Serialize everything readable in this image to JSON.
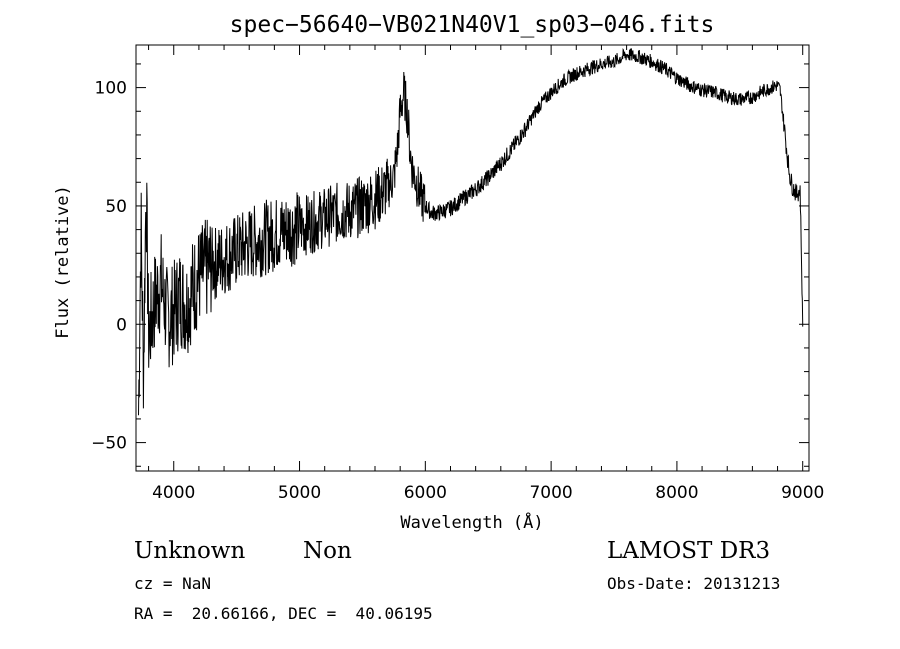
{
  "chart_data": {
    "type": "line",
    "title": "spec−56640−VB021N40V1_sp03−046.fits",
    "xlabel": "Wavelength (Å)",
    "ylabel": "Flux (relative)",
    "xlim": [
      3700,
      9050
    ],
    "ylim": [
      -62,
      118
    ],
    "x_ticks": [
      4000,
      5000,
      6000,
      7000,
      8000,
      9000
    ],
    "x_tick_labels": [
      "4000",
      "5000",
      "6000",
      "7000",
      "8000",
      "9000"
    ],
    "y_ticks": [
      -50,
      0,
      50,
      100
    ],
    "y_tick_labels": [
      "−50",
      "0",
      "50",
      "100"
    ],
    "grid": false,
    "series": [
      {
        "name": "flux",
        "x": [
          3720,
          3740,
          3760,
          3780,
          3800,
          3850,
          3900,
          3950,
          4000,
          4050,
          4100,
          4150,
          4200,
          4300,
          4400,
          4500,
          4600,
          4700,
          4800,
          4900,
          5000,
          5100,
          5200,
          5300,
          5400,
          5500,
          5600,
          5650,
          5700,
          5750,
          5780,
          5800,
          5830,
          5860,
          5880,
          5900,
          5920,
          5950,
          6000,
          6050,
          6100,
          6150,
          6200,
          6300,
          6400,
          6500,
          6600,
          6700,
          6800,
          6900,
          7000,
          7100,
          7200,
          7300,
          7400,
          7500,
          7600,
          7700,
          7800,
          7900,
          8000,
          8100,
          8200,
          8300,
          8400,
          8500,
          8600,
          8700,
          8750,
          8800,
          8820,
          8850,
          8880,
          8900,
          8920,
          8950,
          8980,
          9000
        ],
        "values": [
          -38,
          42,
          -20,
          60,
          -5,
          10,
          18,
          2,
          5,
          12,
          8,
          15,
          20,
          25,
          28,
          31,
          34,
          36,
          38,
          40,
          41,
          43,
          45,
          47,
          48,
          50,
          53,
          55,
          58,
          62,
          75,
          90,
          98,
          88,
          72,
          65,
          62,
          56,
          50,
          47,
          47,
          48,
          49,
          53,
          57,
          62,
          68,
          75,
          83,
          92,
          98,
          103,
          106,
          108,
          110,
          111,
          114,
          113,
          111,
          108,
          104,
          101,
          99,
          98,
          96,
          95,
          96,
          99,
          100,
          101,
          99,
          85,
          70,
          62,
          58,
          55,
          57,
          -1
        ]
      }
    ]
  },
  "footer": {
    "object_class": "Unknown",
    "subclass": "Non",
    "survey": "LAMOST DR3",
    "redshift": "cz = NaN",
    "obs_date": "Obs-Date: 20131213",
    "coords": "RA =  20.66166, DEC =  40.06195"
  }
}
